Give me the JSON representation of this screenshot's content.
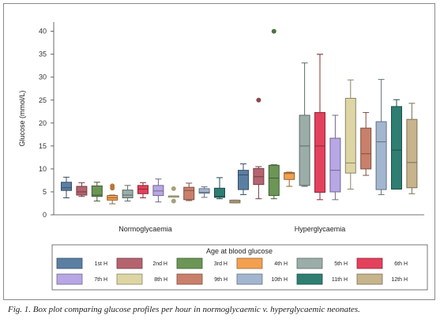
{
  "chart_data": {
    "type": "box",
    "ylabel": "Glucose (mmol/L)",
    "ylim": [
      0,
      42
    ],
    "yticks": [
      0,
      5,
      10,
      15,
      20,
      25,
      30,
      35,
      40
    ],
    "grid": false,
    "groups": [
      "Normoglycaemia",
      "Hyperglycaemia"
    ],
    "legend": {
      "title": "Age at blood glucose",
      "placement": "bottom",
      "entries": [
        {
          "label": "1st H",
          "color": "#5b7fa3"
        },
        {
          "label": "2nd H",
          "color": "#b5646f"
        },
        {
          "label": "3rd H",
          "color": "#6b9656"
        },
        {
          "label": "4th H",
          "color": "#f2a050"
        },
        {
          "label": "5th H",
          "color": "#9aada8"
        },
        {
          "label": "6th H",
          "color": "#e3415c"
        },
        {
          "label": "7th H",
          "color": "#b7a7e4"
        },
        {
          "label": "8th H",
          "color": "#ddd6a4"
        },
        {
          "label": "9th H",
          "color": "#c9806b"
        },
        {
          "label": "10th H",
          "color": "#a2b7cf"
        },
        {
          "label": "11th H",
          "color": "#2f7e72"
        },
        {
          "label": "12th H",
          "color": "#c7b48c"
        }
      ]
    },
    "series": [
      {
        "group": "Normoglycaemia",
        "hour": "1st H",
        "min": 3.7,
        "q1": 5.3,
        "median": 5.9,
        "q3": 7.1,
        "max": 8.2,
        "outliers": []
      },
      {
        "group": "Normoglycaemia",
        "hour": "2nd H",
        "min": 4.0,
        "q1": 4.3,
        "median": 5.0,
        "q3": 6.2,
        "max": 7.0,
        "outliers": []
      },
      {
        "group": "Normoglycaemia",
        "hour": "3rd H",
        "min": 3.0,
        "q1": 4.0,
        "median": 4.3,
        "q3": 6.3,
        "max": 7.1,
        "outliers": []
      },
      {
        "group": "Normoglycaemia",
        "hour": "4th H",
        "min": 2.4,
        "q1": 3.2,
        "median": 3.7,
        "q3": 4.2,
        "max": 4.3,
        "outliers": [
          5.8,
          6.3
        ]
      },
      {
        "group": "Normoglycaemia",
        "hour": "5th H",
        "min": 3.0,
        "q1": 3.7,
        "median": 4.3,
        "q3": 5.4,
        "max": 6.4,
        "outliers": []
      },
      {
        "group": "Normoglycaemia",
        "hour": "6th H",
        "min": 3.7,
        "q1": 4.6,
        "median": 5.6,
        "q3": 6.4,
        "max": 7.0,
        "outliers": []
      },
      {
        "group": "Normoglycaemia",
        "hour": "7th H",
        "min": 2.8,
        "q1": 4.2,
        "median": 5.2,
        "q3": 6.4,
        "max": 7.8,
        "outliers": []
      },
      {
        "group": "Normoglycaemia",
        "hour": "8th H",
        "min": 4.1,
        "q1": 4.1,
        "median": 4.1,
        "q3": 4.1,
        "max": 4.1,
        "outliers": [
          5.7,
          3.0
        ]
      },
      {
        "group": "Normoglycaemia",
        "hour": "9th H",
        "min": 3.1,
        "q1": 3.3,
        "median": 5.3,
        "q3": 6.0,
        "max": 6.9,
        "outliers": []
      },
      {
        "group": "Normoglycaemia",
        "hour": "10th H",
        "min": 3.8,
        "q1": 4.7,
        "median": 4.9,
        "q3": 5.7,
        "max": 6.1,
        "outliers": []
      },
      {
        "group": "Normoglycaemia",
        "hour": "11th H",
        "min": 3.5,
        "q1": 3.8,
        "median": 4.0,
        "q3": 5.8,
        "max": 8.1,
        "outliers": []
      },
      {
        "group": "Normoglycaemia",
        "hour": "12th H",
        "min": 2.6,
        "q1": 2.6,
        "median": 2.9,
        "q3": 3.2,
        "max": 3.2,
        "outliers": []
      },
      {
        "group": "Hyperglycaemia",
        "hour": "1st H",
        "min": 4.4,
        "q1": 5.5,
        "median": 8.7,
        "q3": 9.7,
        "max": 11.1,
        "outliers": []
      },
      {
        "group": "Hyperglycaemia",
        "hour": "2nd H",
        "min": 3.5,
        "q1": 6.6,
        "median": 8.3,
        "q3": 10.1,
        "max": 10.5,
        "outliers": [
          25.0
        ]
      },
      {
        "group": "Hyperglycaemia",
        "hour": "3rd H",
        "min": 3.5,
        "q1": 4.2,
        "median": 8.0,
        "q3": 10.8,
        "max": 10.9,
        "outliers": [
          40.0
        ]
      },
      {
        "group": "Hyperglycaemia",
        "hour": "4th H",
        "min": 6.2,
        "q1": 7.7,
        "median": 9.0,
        "q3": 9.2,
        "max": 9.3,
        "outliers": []
      },
      {
        "group": "Hyperglycaemia",
        "hour": "5th H",
        "min": 6.2,
        "q1": 6.4,
        "median": 15.0,
        "q3": 21.7,
        "max": 33.1,
        "outliers": []
      },
      {
        "group": "Hyperglycaemia",
        "hour": "6th H",
        "min": 3.3,
        "q1": 4.9,
        "median": 15.0,
        "q3": 22.3,
        "max": 35.0,
        "outliers": []
      },
      {
        "group": "Hyperglycaemia",
        "hour": "7th H",
        "min": 3.3,
        "q1": 5.0,
        "median": 9.7,
        "q3": 16.7,
        "max": 21.7,
        "outliers": []
      },
      {
        "group": "Hyperglycaemia",
        "hour": "8th H",
        "min": 5.6,
        "q1": 9.1,
        "median": 11.3,
        "q3": 25.4,
        "max": 29.4,
        "outliers": []
      },
      {
        "group": "Hyperglycaemia",
        "hour": "9th H",
        "min": 8.6,
        "q1": 10.0,
        "median": 13.3,
        "q3": 18.9,
        "max": 22.3,
        "outliers": []
      },
      {
        "group": "Hyperglycaemia",
        "hour": "10th H",
        "min": 4.4,
        "q1": 5.5,
        "median": 15.9,
        "q3": 20.3,
        "max": 29.5,
        "outliers": []
      },
      {
        "group": "Hyperglycaemia",
        "hour": "11th H",
        "min": 5.6,
        "q1": 5.6,
        "median": 14.1,
        "q3": 23.6,
        "max": 25.1,
        "outliers": []
      },
      {
        "group": "Hyperglycaemia",
        "hour": "12th H",
        "min": 4.6,
        "q1": 5.9,
        "median": 11.4,
        "q3": 20.8,
        "max": 24.3,
        "outliers": []
      }
    ]
  },
  "caption": "Fig. 1. Box plot comparing glucose profiles per hour in normoglycaemic v. hyperglycaemic neonates."
}
